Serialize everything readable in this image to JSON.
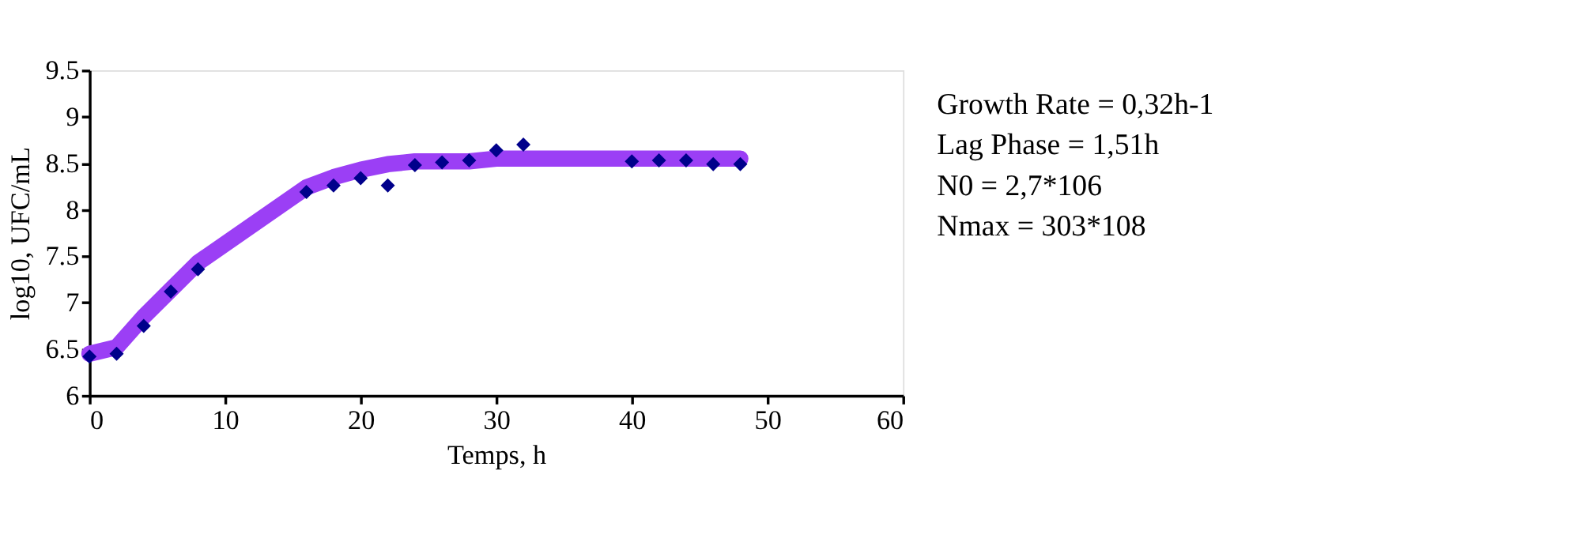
{
  "chart_data": {
    "type": "scatter",
    "xlabel": "Temps, h",
    "ylabel": "log10, UFC/mL",
    "xlim": [
      0,
      60
    ],
    "xticks": [
      0,
      10,
      20,
      30,
      40,
      50,
      60
    ],
    "ylim": [
      6,
      9.5
    ],
    "yticks": [
      6,
      6.5,
      7,
      7.5,
      8,
      8.5,
      9,
      9.5
    ],
    "grid": false,
    "series": [
      {
        "type": "line",
        "color": "#9b3ff5",
        "x": [
          0,
          2,
          4,
          6,
          8,
          16,
          18,
          20,
          22,
          24,
          28,
          30,
          48
        ],
        "values": [
          6.45,
          6.52,
          6.85,
          7.14,
          7.43,
          8.24,
          8.35,
          8.43,
          8.49,
          8.52,
          8.52,
          8.55,
          8.55
        ]
      },
      {
        "type": "scatter",
        "color": "#00008b",
        "marker": "diamond",
        "x": [
          0,
          2,
          4,
          6,
          8,
          16,
          18,
          20,
          22,
          24,
          26,
          28,
          30,
          32,
          40,
          42,
          44,
          46,
          48
        ],
        "values": [
          6.42,
          6.45,
          6.75,
          7.12,
          7.36,
          8.19,
          8.26,
          8.34,
          8.26,
          8.48,
          8.51,
          8.53,
          8.64,
          8.7,
          8.52,
          8.53,
          8.53,
          8.49,
          8.49
        ]
      }
    ],
    "annotations": [
      "Growth Rate = 0,32h-1",
      "Lag Phase = 1,51h",
      "N0 = 2,7*106",
      "Nmax = 303*108"
    ]
  }
}
